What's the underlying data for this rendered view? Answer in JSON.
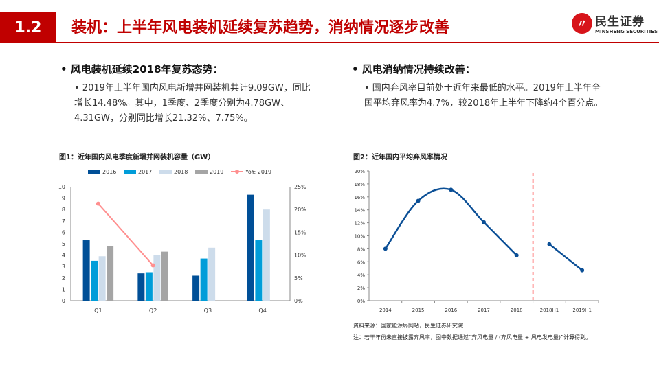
{
  "header": {
    "section": "1.2",
    "title": "装机：上半年风电装机延续复苏趋势，消纳情况逐步改善",
    "logo_cn": "民生证券",
    "logo_en": "MINSHENG SECURITIES"
  },
  "left": {
    "heading": "• 风电装机延续2018年复苏态势：",
    "bullet": "• 2019年上半年国内风电新增并网装机共计9.09GW，同比增长14.48%。其中，1季度、2季度分别为4.78GW、4.31GW，分别同比增长21.32%、7.75%。"
  },
  "right": {
    "heading": "• 风电消纳情况持续改善：",
    "bullet": "• 国内弃风率目前处于近年来最低的水平。2019年上半年全国平均弃风率为4.7%，较2018年上半年下降约4个百分点。"
  },
  "chart_data": [
    {
      "type": "bar",
      "title": "图1：近年国内风电季度新增并网装机容量（GW）",
      "categories": [
        "Q1",
        "Q2",
        "Q3",
        "Q4"
      ],
      "series": [
        {
          "name": "2016",
          "values": [
            5.3,
            2.4,
            2.2,
            9.3
          ],
          "color": "#004f97"
        },
        {
          "name": "2017",
          "values": [
            3.5,
            2.5,
            3.7,
            5.3
          ],
          "color": "#009dd9"
        },
        {
          "name": "2018",
          "values": [
            3.9,
            4.0,
            4.65,
            8.0
          ],
          "color": "#cddceb"
        },
        {
          "name": "2019",
          "values": [
            4.8,
            4.3,
            null,
            null
          ],
          "color": "#a5a5a5"
        },
        {
          "name": "YoY: 2019",
          "type": "line",
          "axis": "right",
          "values": [
            21.3,
            7.75,
            null,
            null
          ],
          "color": "#ff8f8f"
        }
      ],
      "ylim": [
        0,
        10
      ],
      "yticks": [
        "0",
        "1",
        "2",
        "3",
        "4",
        "5",
        "6",
        "7",
        "8",
        "9",
        "10"
      ],
      "y2lim": [
        0,
        25
      ],
      "y2ticks": [
        "0%",
        "5%",
        "10%",
        "15%",
        "20%",
        "25%"
      ],
      "legend": "top"
    },
    {
      "type": "line",
      "title": "图2：近年国内平均弃风率情况",
      "categories": [
        "2014",
        "2015",
        "2016",
        "2017",
        "2018",
        "2018H1",
        "2019H1"
      ],
      "segments": [
        {
          "values": [
            8.0,
            15.4,
            17.1,
            12.1,
            7.0
          ],
          "start": 0
        },
        {
          "values": [
            8.7,
            4.7
          ],
          "start": 5
        }
      ],
      "color": "#0b4f96",
      "divider_color": "#ff2020",
      "ylim": [
        0,
        20
      ],
      "yticks": [
        "0%",
        "2%",
        "4%",
        "6%",
        "8%",
        "10%",
        "12%",
        "14%",
        "16%",
        "18%",
        "20%"
      ],
      "source": "资料来源：国家能源局网站，民生证券研究院",
      "footnote": "注：若干年份未直接披露弃风率，图中数据通过“弃风电量 / (弃风电量 + 风电发电量)”计算得到。"
    }
  ]
}
